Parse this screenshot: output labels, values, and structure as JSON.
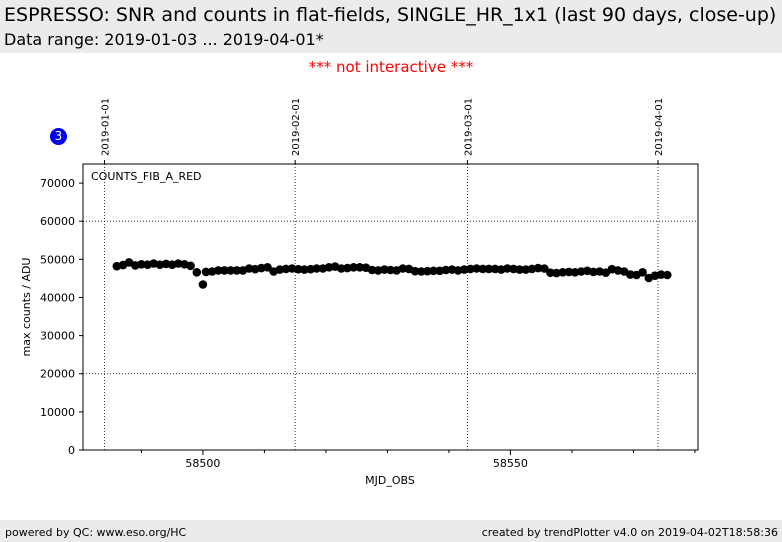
{
  "header": {
    "title": "ESPRESSO: SNR and counts in flat-fields, SINGLE_HR_1x1 (last 90 days, close-up)",
    "subtitle": "Data range: 2019-01-03 ... 2019-04-01*"
  },
  "notice": "*** not interactive ***",
  "badge": "3",
  "footer": {
    "left": "powered by QC: www.eso.org/HC",
    "right": "created by trendPlotter v4.0 on 2019-04-02T18:58:36"
  },
  "colors": {
    "header_bg": "#ebebeb",
    "notice": "#ff0000",
    "badge": "#0000ee",
    "marker": "#000000"
  },
  "chart_data": {
    "type": "scatter",
    "panel_label": "COUNTS_FIB_A_RED",
    "xlabel": "MJD_OBS",
    "ylabel": "max counts / ADU",
    "xlim": [
      58480.5,
      58580.5
    ],
    "ylim": [
      0,
      75000
    ],
    "x_ticks": [
      58500,
      58550
    ],
    "y_ticks": [
      0,
      10000,
      20000,
      30000,
      40000,
      50000,
      60000,
      70000
    ],
    "grid": "dotted, at top date ticks and y = 20000, 60000",
    "y_grid": [
      20000,
      60000
    ],
    "top_date_ticks": [
      {
        "label": "2019-01-01",
        "mjd": 58484
      },
      {
        "label": "2019-02-01",
        "mjd": 58515
      },
      {
        "label": "2019-03-01",
        "mjd": 58543
      },
      {
        "label": "2019-04-01",
        "mjd": 58574
      }
    ],
    "series": [
      {
        "marker": "circle",
        "x": [
          58486,
          58487,
          58488,
          58489,
          58490,
          58491,
          58492,
          58493,
          58494,
          58495,
          58496,
          58497,
          58498,
          58499,
          58500,
          58500.5,
          58501.5,
          58502.5,
          58503.5,
          58504.5,
          58505.5,
          58506.5,
          58507.5,
          58508.5,
          58509.5,
          58510.5,
          58511.5,
          58512.5,
          58513.5,
          58514.5,
          58515.5,
          58516.5,
          58517.5,
          58518.5,
          58519.5,
          58520.5,
          58521.5,
          58522.5,
          58523.5,
          58524.5,
          58525.5,
          58526.5,
          58527.5,
          58528.5,
          58529.5,
          58530.5,
          58531.5,
          58532.5,
          58533.5,
          58534.5,
          58535.5,
          58536.5,
          58537.5,
          58538.5,
          58539.5,
          58540.5,
          58541.5,
          58542.5,
          58543.5,
          58544.5,
          58545.5,
          58546.5,
          58547.5,
          58548.5,
          58549.5,
          58550.5,
          58551.5,
          58552.5,
          58553.5,
          58554.5,
          58555.5,
          58556.5,
          58557.5,
          58558.5,
          58559.5,
          58560.5,
          58561.5,
          58562.5,
          58563.5,
          58564.5,
          58565.5,
          58566.5,
          58567.5,
          58568.5,
          58569.5,
          58570.5,
          58571.5,
          58572.5,
          58573.5,
          58574.5,
          58575.5
        ],
        "y": [
          48200,
          48500,
          49200,
          48400,
          48700,
          48600,
          48900,
          48600,
          48800,
          48600,
          48900,
          48700,
          48300,
          46600,
          43400,
          46700,
          46800,
          47100,
          47100,
          47100,
          47100,
          47100,
          47600,
          47400,
          47700,
          47900,
          46800,
          47300,
          47500,
          47600,
          47400,
          47300,
          47400,
          47600,
          47600,
          47900,
          48100,
          47600,
          47700,
          47900,
          47900,
          47800,
          47200,
          47100,
          47300,
          47200,
          47100,
          47600,
          47500,
          46900,
          46800,
          46900,
          47000,
          47000,
          47200,
          47300,
          47100,
          47300,
          47500,
          47600,
          47500,
          47500,
          47500,
          47300,
          47600,
          47500,
          47300,
          47300,
          47500,
          47700,
          47600,
          46500,
          46400,
          46600,
          46700,
          46600,
          46800,
          47000,
          46700,
          46800,
          46500,
          47400,
          47100,
          46800,
          46000,
          45900,
          46600,
          45100,
          45700,
          46000,
          45900
        ]
      }
    ]
  }
}
